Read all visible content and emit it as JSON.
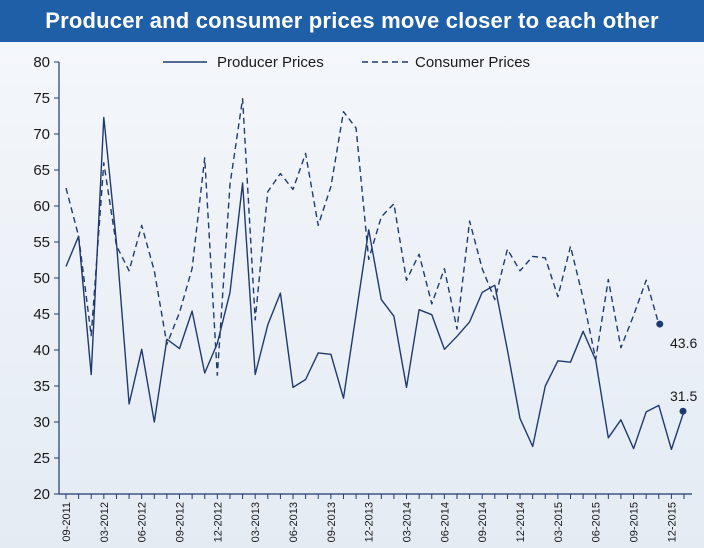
{
  "chart_data": {
    "type": "line",
    "title": "Producer and consumer prices move closer to each other",
    "ylim": [
      20,
      80
    ],
    "yticks": [
      20,
      25,
      30,
      35,
      40,
      45,
      50,
      55,
      60,
      65,
      70,
      75,
      80
    ],
    "x_tick_labels": [
      "09-2011",
      "03-2012",
      "06-2012",
      "09-2012",
      "12-2012",
      "03-2013",
      "06-2013",
      "09-2013",
      "12-2013",
      "03-2014",
      "06-2014",
      "09-2014",
      "12-2014",
      "03-2015",
      "06-2015",
      "09-2015",
      "12-2015"
    ],
    "legend_position": "top-center",
    "series": [
      {
        "name": "Producer Prices",
        "style": "solid",
        "color": "#1f3a6e",
        "values": [
          51.6,
          55.8,
          36.6,
          72.3,
          55.0,
          32.5,
          40.1,
          30.0,
          41.5,
          40.2,
          45.4,
          36.8,
          40.9,
          48.0,
          63.2,
          36.6,
          43.5,
          47.9,
          34.8,
          35.9,
          39.6,
          39.4,
          33.3,
          45.0,
          56.7,
          47.0,
          44.7,
          34.8,
          45.6,
          44.9,
          40.1,
          41.9,
          43.9,
          48.0,
          49.0,
          40.0,
          30.5,
          26.6,
          35.0,
          38.5,
          38.3,
          42.6,
          38.6,
          27.8,
          30.3,
          26.3,
          31.4,
          32.3,
          26.2,
          31.5
        ]
      },
      {
        "name": "Consumer Prices",
        "style": "dashed",
        "color": "#1f3a6e",
        "values": [
          62.5,
          55.8,
          42.0,
          66.0,
          54.5,
          51.0,
          57.3,
          51.0,
          40.8,
          45.2,
          51.3,
          66.7,
          36.5,
          63.0,
          74.9,
          44.2,
          62.0,
          64.5,
          62.3,
          67.3,
          57.3,
          62.7,
          73.1,
          70.8,
          52.6,
          58.5,
          60.3,
          49.7,
          53.3,
          46.4,
          51.3,
          42.9,
          57.9,
          51.3,
          47.0,
          54.0,
          51.0,
          53.0,
          52.8,
          47.4,
          54.4,
          47.2,
          38.7,
          49.8,
          40.3,
          44.8,
          49.7,
          43.6
        ]
      }
    ],
    "end_labels": [
      "43.6",
      "31.5"
    ]
  }
}
